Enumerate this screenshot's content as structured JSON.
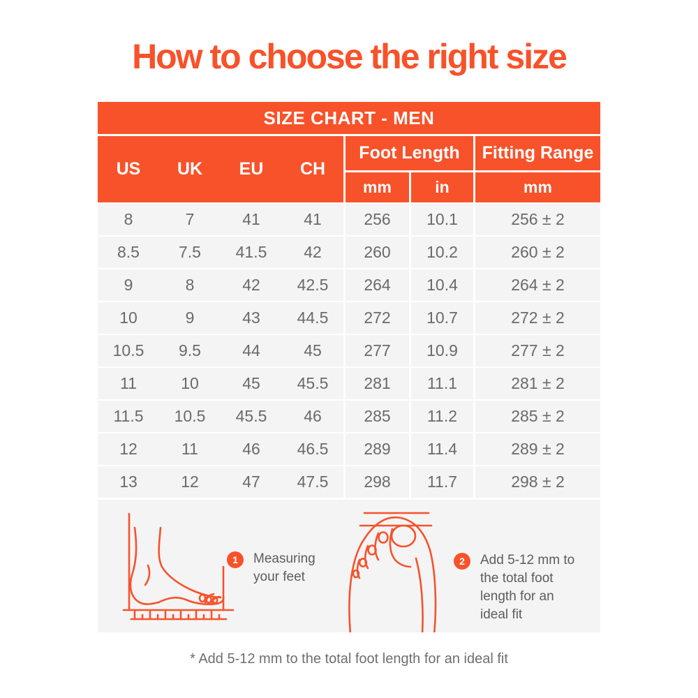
{
  "page": {
    "title": "How to choose the right size",
    "footnote": "* Add 5-12 mm to the total foot length for an ideal fit"
  },
  "colors": {
    "accent_orange": "#F7522A",
    "row_background": "#F4F4F5",
    "table_text_gray": "#6A6A6A",
    "note_text_gray": "#5C5C5C",
    "white": "#FFFFFF"
  },
  "table": {
    "banner": "SIZE CHART - MEN",
    "size_columns": [
      "US",
      "UK",
      "EU",
      "CH"
    ],
    "group_headers": {
      "foot_length": "Foot Length",
      "fitting_range": "Fitting Range"
    },
    "sub_headers": {
      "foot_mm": "mm",
      "foot_in": "in",
      "fit_mm": "mm"
    },
    "rows": [
      [
        "8",
        "7",
        "41",
        "41",
        "256",
        "10.1",
        "256 ± 2"
      ],
      [
        "8.5",
        "7.5",
        "41.5",
        "42",
        "260",
        "10.2",
        "260 ± 2"
      ],
      [
        "9",
        "8",
        "42",
        "42.5",
        "264",
        "10.4",
        "264 ± 2"
      ],
      [
        "10",
        "9",
        "43",
        "44.5",
        "272",
        "10.7",
        "272 ± 2"
      ],
      [
        "10.5",
        "9.5",
        "44",
        "45",
        "277",
        "10.9",
        "277 ± 2"
      ],
      [
        "11",
        "10",
        "45",
        "45.5",
        "281",
        "11.1",
        "281 ± 2"
      ],
      [
        "11.5",
        "10.5",
        "45.5",
        "46",
        "285",
        "11.2",
        "285 ± 2"
      ],
      [
        "12",
        "11",
        "46",
        "46.5",
        "289",
        "11.4",
        "289 ± 2"
      ],
      [
        "13",
        "12",
        "47",
        "47.5",
        "298",
        "11.7",
        "298 ± 2"
      ]
    ]
  },
  "steps": [
    {
      "number": "1",
      "lines": [
        "Measuring",
        "your feet"
      ]
    },
    {
      "number": "2",
      "lines": [
        "Add 5-12 mm to",
        "the total foot",
        "length for an",
        "ideal fit"
      ]
    }
  ],
  "icons": {
    "foot_side_view": "foot-side-view-illustration",
    "foot_top_view": "foot-top-view-illustration"
  },
  "chart_data": {
    "type": "table",
    "title": "SIZE CHART - MEN",
    "columns": [
      "US",
      "UK",
      "EU",
      "CH",
      "Foot Length mm",
      "Foot Length in",
      "Fitting Range mm"
    ],
    "rows": [
      [
        "8",
        "7",
        "41",
        "41",
        "256",
        "10.1",
        "256 ± 2"
      ],
      [
        "8.5",
        "7.5",
        "41.5",
        "42",
        "260",
        "10.2",
        "260 ± 2"
      ],
      [
        "9",
        "8",
        "42",
        "42.5",
        "264",
        "10.4",
        "264 ± 2"
      ],
      [
        "10",
        "9",
        "43",
        "44.5",
        "272",
        "10.7",
        "272 ± 2"
      ],
      [
        "10.5",
        "9.5",
        "44",
        "45",
        "277",
        "10.9",
        "277 ± 2"
      ],
      [
        "11",
        "10",
        "45",
        "45.5",
        "281",
        "11.1",
        "281 ± 2"
      ],
      [
        "11.5",
        "10.5",
        "45.5",
        "46",
        "285",
        "11.2",
        "285 ± 2"
      ],
      [
        "12",
        "11",
        "46",
        "46.5",
        "289",
        "11.4",
        "289 ± 2"
      ],
      [
        "13",
        "12",
        "47",
        "47.5",
        "298",
        "11.7",
        "298 ± 2"
      ]
    ]
  }
}
